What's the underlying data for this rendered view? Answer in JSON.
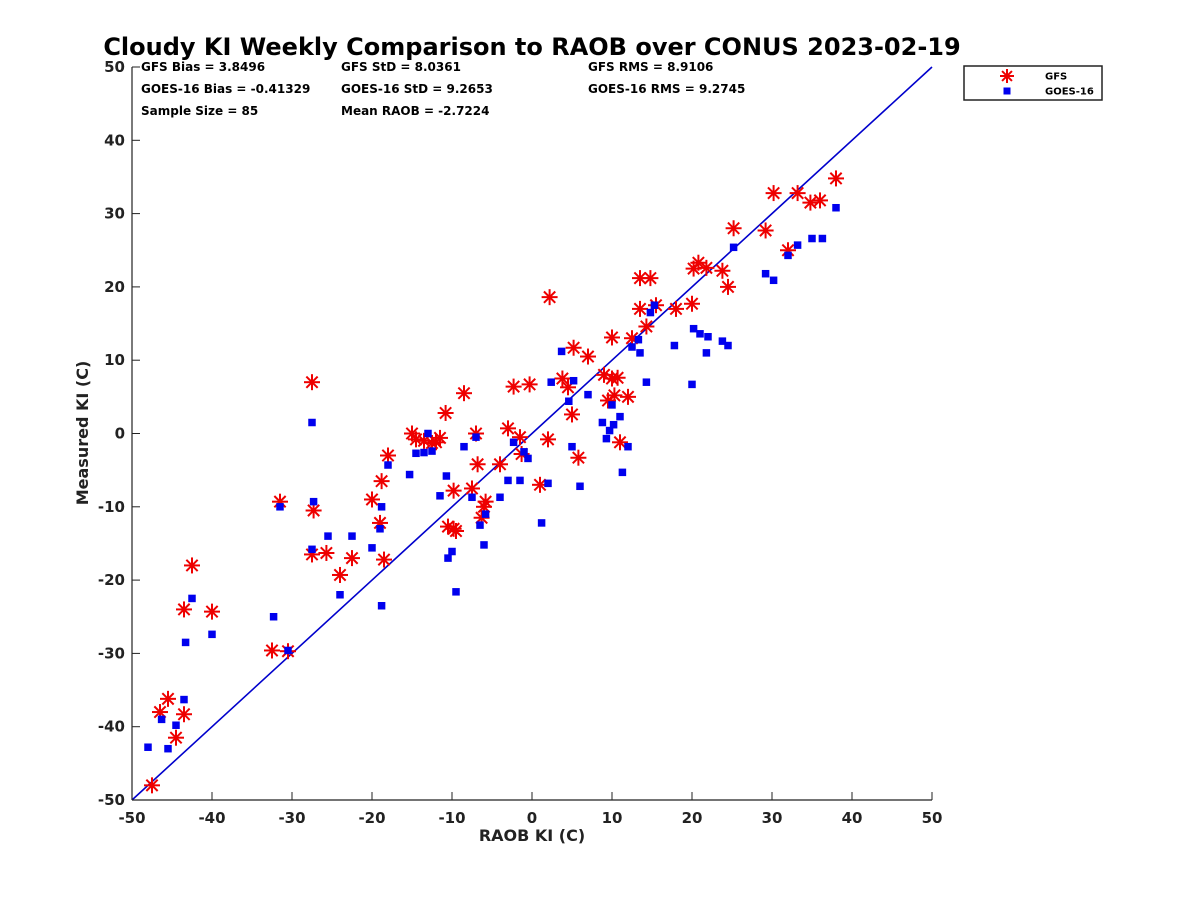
{
  "chart_data": {
    "type": "scatter",
    "title": "Cloudy KI Weekly Comparison to RAOB over CONUS 2023-02-19",
    "xlabel": "RAOB KI (C)",
    "ylabel": "Measured KI (C)",
    "xlim": [
      -50,
      50
    ],
    "ylim": [
      -50,
      50
    ],
    "xticks": [
      -50,
      -40,
      -30,
      -20,
      -10,
      0,
      10,
      20,
      30,
      40,
      50
    ],
    "yticks": [
      -50,
      -40,
      -30,
      -20,
      -10,
      0,
      10,
      20,
      30,
      40,
      50
    ],
    "grid": false,
    "legend_position": "outside-top-right",
    "stats": [
      [
        "GFS Bias = 3.8496",
        "GFS StD = 8.0361",
        "GFS RMS = 8.9106"
      ],
      [
        "GOES-16 Bias = -0.41329",
        "GOES-16 StD = 9.2653",
        "GOES-16 RMS = 9.2745"
      ],
      [
        "Sample Size = 85",
        "Mean RAOB = -2.7224",
        ""
      ]
    ],
    "reference_line": {
      "from": [
        -50,
        -50
      ],
      "to": [
        50,
        50
      ],
      "color": "#0000cc"
    },
    "series": [
      {
        "name": "GFS",
        "marker": "asterisk",
        "color": "#ee0000",
        "points": [
          [
            -47.5,
            -48
          ],
          [
            -46.5,
            -38
          ],
          [
            -45.5,
            -36.2
          ],
          [
            -44.5,
            -41.5
          ],
          [
            -43.5,
            -38.3
          ],
          [
            -43.5,
            -24
          ],
          [
            -42.5,
            -18
          ],
          [
            -40,
            -24.3
          ],
          [
            -32.5,
            -29.6
          ],
          [
            -30.5,
            -29.7
          ],
          [
            -31.5,
            -9.3
          ],
          [
            -27.5,
            7
          ],
          [
            -27.5,
            -16.5
          ],
          [
            -27.3,
            -10.5
          ],
          [
            -25.7,
            -16.3
          ],
          [
            -24,
            -19.3
          ],
          [
            -22.5,
            -17
          ],
          [
            -20,
            -9
          ],
          [
            -19,
            -12.2
          ],
          [
            -18.8,
            -6.5
          ],
          [
            -18.5,
            -17.2
          ],
          [
            -18,
            -3
          ],
          [
            -15,
            0
          ],
          [
            -14.5,
            -0.8
          ],
          [
            -13.5,
            -1
          ],
          [
            -12.5,
            -1.3
          ],
          [
            -12,
            -1.2
          ],
          [
            -11.5,
            -0.6
          ],
          [
            -10.8,
            2.8
          ],
          [
            -10.5,
            -12.7
          ],
          [
            -9.8,
            -13
          ],
          [
            -9.5,
            -13.3
          ],
          [
            -9.8,
            -7.8
          ],
          [
            -8.5,
            5.5
          ],
          [
            -7.5,
            -7.5
          ],
          [
            -7,
            0
          ],
          [
            -6.8,
            -4.2
          ],
          [
            -6.3,
            -11.5
          ],
          [
            -6,
            -10
          ],
          [
            -5.8,
            -9.3
          ],
          [
            -4,
            -4.2
          ],
          [
            -3,
            0.7
          ],
          [
            -2.3,
            6.4
          ],
          [
            -1.5,
            -0.5
          ],
          [
            -1.3,
            -2.8
          ],
          [
            -0.3,
            6.7
          ],
          [
            1,
            -7
          ],
          [
            2,
            -0.8
          ],
          [
            2.2,
            18.6
          ],
          [
            3.8,
            7.5
          ],
          [
            4.5,
            6.3
          ],
          [
            5,
            2.6
          ],
          [
            5.2,
            11.7
          ],
          [
            5.8,
            -3.3
          ],
          [
            7,
            10.5
          ],
          [
            9,
            8
          ],
          [
            9.5,
            4.5
          ],
          [
            10,
            13.1
          ],
          [
            10,
            7.5
          ],
          [
            10.3,
            5.2
          ],
          [
            10.7,
            7.6
          ],
          [
            11,
            -1.2
          ],
          [
            12,
            5
          ],
          [
            12.5,
            13
          ],
          [
            13.5,
            17
          ],
          [
            13.5,
            21.2
          ],
          [
            14.3,
            14.6
          ],
          [
            14.8,
            21.2
          ],
          [
            15.5,
            17.5
          ],
          [
            18,
            17
          ],
          [
            20,
            17.7
          ],
          [
            20.2,
            22.5
          ],
          [
            20.8,
            23.3
          ],
          [
            21.8,
            22.6
          ],
          [
            23.8,
            22.2
          ],
          [
            24.5,
            20
          ],
          [
            25.2,
            28
          ],
          [
            29.2,
            27.7
          ],
          [
            30.2,
            32.8
          ],
          [
            32,
            25
          ],
          [
            33.2,
            32.8
          ],
          [
            34.8,
            31.5
          ],
          [
            36,
            31.8
          ],
          [
            38,
            34.8
          ]
        ]
      },
      {
        "name": "GOES-16",
        "marker": "square",
        "color": "#0000ee",
        "points": [
          [
            -48,
            -42.8
          ],
          [
            -46.3,
            -39
          ],
          [
            -45.5,
            -43
          ],
          [
            -44.5,
            -39.8
          ],
          [
            -43.5,
            -36.3
          ],
          [
            -43.3,
            -28.5
          ],
          [
            -42.5,
            -22.5
          ],
          [
            -40,
            -27.4
          ],
          [
            -32.3,
            -25
          ],
          [
            -31.5,
            -10
          ],
          [
            -30.5,
            -29.6
          ],
          [
            -27.5,
            1.5
          ],
          [
            -27.3,
            -9.3
          ],
          [
            -27.5,
            -15.8
          ],
          [
            -25.5,
            -14
          ],
          [
            -24,
            -22
          ],
          [
            -22.5,
            -14
          ],
          [
            -20,
            -15.6
          ],
          [
            -19,
            -13
          ],
          [
            -18.8,
            -23.5
          ],
          [
            -18.8,
            -10
          ],
          [
            -18,
            -4.3
          ],
          [
            -15.3,
            -5.6
          ],
          [
            -14.5,
            -2.7
          ],
          [
            -13.5,
            -2.6
          ],
          [
            -13,
            0
          ],
          [
            -12.5,
            -2.4
          ],
          [
            -11.5,
            -8.5
          ],
          [
            -10.7,
            -5.8
          ],
          [
            -10.5,
            -17
          ],
          [
            -10,
            -16.1
          ],
          [
            -9.5,
            -21.6
          ],
          [
            -8.5,
            -1.8
          ],
          [
            -7.5,
            -8.7
          ],
          [
            -7,
            -0.5
          ],
          [
            -6.5,
            -12.5
          ],
          [
            -6,
            -15.2
          ],
          [
            -5.8,
            -11
          ],
          [
            -4,
            -8.7
          ],
          [
            -3,
            -6.4
          ],
          [
            -2.3,
            -1.2
          ],
          [
            -1.5,
            -6.4
          ],
          [
            -1,
            -2.5
          ],
          [
            -0.5,
            -3.4
          ],
          [
            1.2,
            -12.2
          ],
          [
            2,
            -6.8
          ],
          [
            2.4,
            7
          ],
          [
            3.7,
            11.2
          ],
          [
            4.6,
            4.4
          ],
          [
            5,
            -1.8
          ],
          [
            5.2,
            7.2
          ],
          [
            6,
            -7.2
          ],
          [
            7,
            5.3
          ],
          [
            8.8,
            1.5
          ],
          [
            9.3,
            -0.7
          ],
          [
            9.7,
            0.4
          ],
          [
            10,
            3.9
          ],
          [
            10.2,
            1.2
          ],
          [
            11,
            2.3
          ],
          [
            11.3,
            -5.3
          ],
          [
            12,
            -1.8
          ],
          [
            12.5,
            11.8
          ],
          [
            13.3,
            12.8
          ],
          [
            13.5,
            11
          ],
          [
            14.3,
            7
          ],
          [
            14.8,
            16.5
          ],
          [
            15.3,
            17.5
          ],
          [
            17.8,
            12
          ],
          [
            20,
            6.7
          ],
          [
            20.2,
            14.3
          ],
          [
            21,
            13.6
          ],
          [
            21.8,
            11
          ],
          [
            22,
            13.2
          ],
          [
            23.8,
            12.6
          ],
          [
            24.5,
            12
          ],
          [
            25.2,
            25.4
          ],
          [
            29.2,
            21.8
          ],
          [
            30.2,
            20.9
          ],
          [
            32,
            24.3
          ],
          [
            33.2,
            25.7
          ],
          [
            35,
            26.6
          ],
          [
            36.3,
            26.6
          ],
          [
            38,
            30.8
          ]
        ]
      }
    ]
  }
}
